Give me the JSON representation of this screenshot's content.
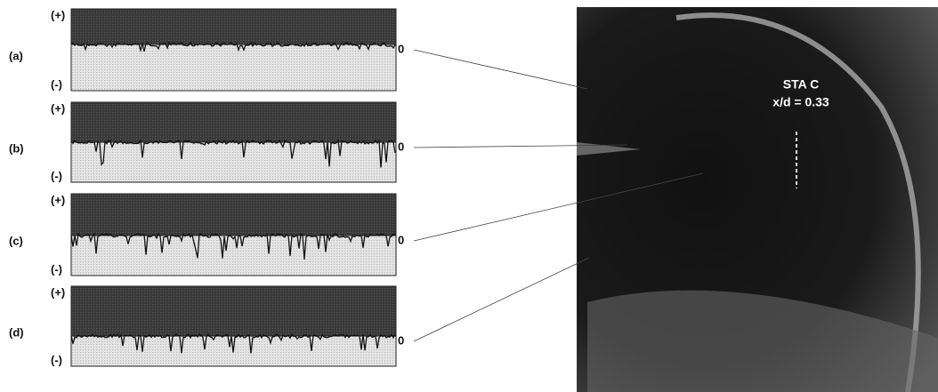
{
  "panels": [
    {
      "label": "(a)",
      "plus": "(+)",
      "minus": "(-)",
      "zero": "0"
    },
    {
      "label": "(b)",
      "plus": "(+)",
      "minus": "(-)",
      "zero": "0"
    },
    {
      "label": "(c)",
      "plus": "(+)",
      "minus": "(-)",
      "zero": "0"
    },
    {
      "label": "(d)",
      "plus": "(+)",
      "minus": "(-)",
      "zero": "0"
    }
  ],
  "image": {
    "station": "STA C",
    "position": "x/d = 0.33"
  }
}
